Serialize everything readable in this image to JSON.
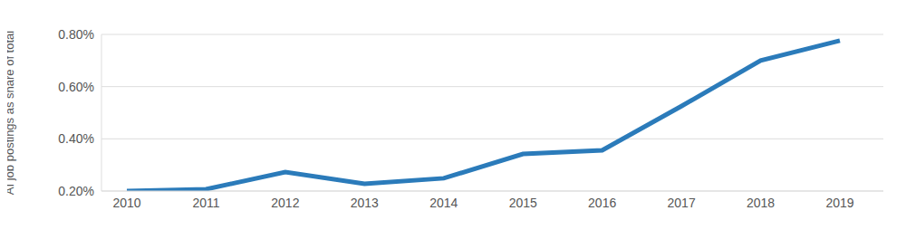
{
  "chart_data": {
    "type": "line",
    "y_label": "AI job postings as share of total",
    "categories": [
      "2010",
      "2011",
      "2012",
      "2013",
      "2014",
      "2015",
      "2016",
      "2017",
      "2018",
      "2019"
    ],
    "values": [
      0.2,
      0.207,
      0.273,
      0.228,
      0.249,
      0.342,
      0.356,
      0.525,
      0.7,
      0.776
    ],
    "color": "#2b7bba",
    "ylim": [
      0.2,
      0.8
    ],
    "yticks": [
      {
        "value": 0.2,
        "label": "0.20%"
      },
      {
        "value": 0.4,
        "label": "0.40%"
      },
      {
        "value": 0.6,
        "label": "0.60%"
      },
      {
        "value": 0.8,
        "label": "0.80%"
      }
    ],
    "grid": true
  }
}
